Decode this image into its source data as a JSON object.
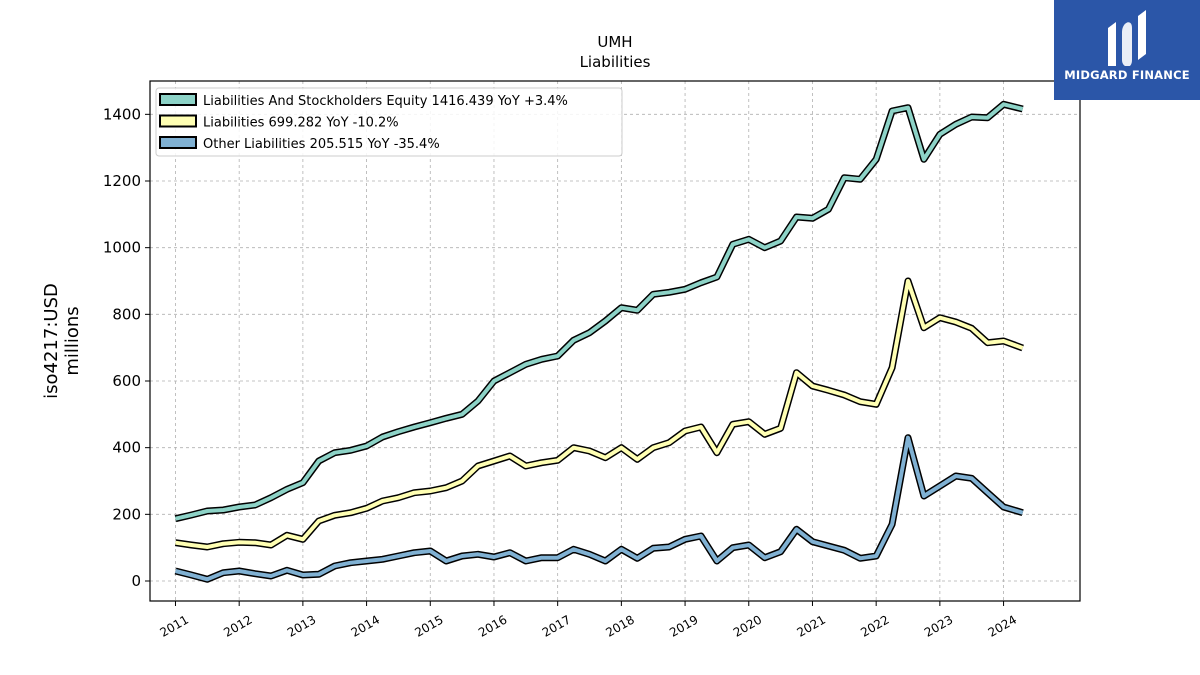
{
  "header": {
    "title": "UMH",
    "subtitle": "Liabilities"
  },
  "branding": {
    "logo_text": "MIDGARD FINANCE",
    "logo_bg": "#2b56a8"
  },
  "chart_data": {
    "type": "line",
    "title": "UMH",
    "subtitle": "Liabilities",
    "ylabel": "iso4217:USD\nmillions",
    "ylabel_lines": [
      "iso4217:USD",
      "millions"
    ],
    "xlabel": "",
    "ylim": [
      -60,
      1500
    ],
    "xlim": [
      2010.6,
      2025.2
    ],
    "grid": true,
    "legend_position": "top-left",
    "y_ticks": [
      0,
      200,
      400,
      600,
      800,
      1000,
      1200,
      1400
    ],
    "x_ticks": [
      2011,
      2012,
      2013,
      2014,
      2015,
      2016,
      2017,
      2018,
      2019,
      2020,
      2021,
      2022,
      2023,
      2024
    ],
    "series": [
      {
        "name": "Liabilities And Stockholders Equity",
        "legend_label": "Liabilities And Stockholders Equity  1416.439 YoY +3.4%",
        "color": "#8dd3c7",
        "x": [
          2011.0,
          2011.25,
          2011.5,
          2011.75,
          2012.0,
          2012.25,
          2012.5,
          2012.75,
          2013.0,
          2013.25,
          2013.5,
          2013.75,
          2014.0,
          2014.25,
          2014.5,
          2014.75,
          2015.0,
          2015.25,
          2015.5,
          2015.75,
          2016.0,
          2016.25,
          2016.5,
          2016.75,
          2017.0,
          2017.25,
          2017.5,
          2017.75,
          2018.0,
          2018.25,
          2018.5,
          2018.75,
          2019.0,
          2019.25,
          2019.5,
          2019.75,
          2020.0,
          2020.25,
          2020.5,
          2020.75,
          2021.0,
          2021.25,
          2021.5,
          2021.75,
          2022.0,
          2022.25,
          2022.5,
          2022.75,
          2023.0,
          2023.25,
          2023.5,
          2023.75,
          2024.0,
          2024.3
        ],
        "values": [
          187,
          198,
          210,
          213,
          222,
          228,
          250,
          275,
          295,
          360,
          385,
          392,
          405,
          432,
          448,
          462,
          475,
          488,
          500,
          540,
          600,
          625,
          650,
          665,
          675,
          722,
          745,
          780,
          820,
          812,
          860,
          866,
          875,
          895,
          912,
          1010,
          1025,
          1000,
          1020,
          1092,
          1088,
          1115,
          1210,
          1205,
          1265,
          1410,
          1420,
          1265,
          1340,
          1370,
          1392,
          1390,
          1430,
          1416
        ]
      },
      {
        "name": "Liabilities",
        "legend_label": "Liabilities  699.282 YoY -10.2%",
        "color": "#ffffb3",
        "x": [
          2011.0,
          2011.25,
          2011.5,
          2011.75,
          2012.0,
          2012.25,
          2012.5,
          2012.75,
          2013.0,
          2013.25,
          2013.5,
          2013.75,
          2014.0,
          2014.25,
          2014.5,
          2014.75,
          2015.0,
          2015.25,
          2015.5,
          2015.75,
          2016.0,
          2016.25,
          2016.5,
          2016.75,
          2017.0,
          2017.25,
          2017.5,
          2017.75,
          2018.0,
          2018.25,
          2018.5,
          2018.75,
          2019.0,
          2019.25,
          2019.5,
          2019.75,
          2020.0,
          2020.25,
          2020.5,
          2020.75,
          2021.0,
          2021.25,
          2021.5,
          2021.75,
          2022.0,
          2022.25,
          2022.5,
          2022.75,
          2023.0,
          2023.25,
          2023.5,
          2023.75,
          2024.0,
          2024.3
        ],
        "values": [
          115,
          108,
          102,
          112,
          116,
          115,
          108,
          137,
          125,
          180,
          197,
          205,
          218,
          240,
          250,
          265,
          270,
          280,
          300,
          345,
          360,
          375,
          345,
          355,
          362,
          400,
          390,
          370,
          400,
          365,
          400,
          415,
          450,
          462,
          385,
          470,
          478,
          440,
          458,
          625,
          585,
          572,
          558,
          538,
          530,
          640,
          900,
          760,
          790,
          777,
          758,
          715,
          720,
          699
        ]
      },
      {
        "name": "Other Liabilities",
        "legend_label": "Other Liabilities  205.515 YoY -35.4%",
        "color": "#80b1d3",
        "x": [
          2011.0,
          2011.25,
          2011.5,
          2011.75,
          2012.0,
          2012.25,
          2012.5,
          2012.75,
          2013.0,
          2013.25,
          2013.5,
          2013.75,
          2014.0,
          2014.25,
          2014.5,
          2014.75,
          2015.0,
          2015.25,
          2015.5,
          2015.75,
          2016.0,
          2016.25,
          2016.5,
          2016.75,
          2017.0,
          2017.25,
          2017.5,
          2017.75,
          2018.0,
          2018.25,
          2018.5,
          2018.75,
          2019.0,
          2019.25,
          2019.5,
          2019.75,
          2020.0,
          2020.25,
          2020.5,
          2020.75,
          2021.0,
          2021.25,
          2021.5,
          2021.75,
          2022.0,
          2022.25,
          2022.5,
          2022.75,
          2023.0,
          2023.25,
          2023.5,
          2023.75,
          2024.0,
          2024.3
        ],
        "values": [
          30,
          18,
          5,
          25,
          30,
          22,
          15,
          32,
          18,
          20,
          45,
          55,
          60,
          65,
          75,
          85,
          90,
          60,
          75,
          80,
          72,
          85,
          60,
          70,
          70,
          95,
          80,
          60,
          95,
          68,
          98,
          102,
          125,
          135,
          60,
          100,
          108,
          70,
          88,
          155,
          118,
          105,
          92,
          68,
          75,
          170,
          430,
          255,
          285,
          315,
          308,
          265,
          222,
          205
        ]
      }
    ]
  }
}
